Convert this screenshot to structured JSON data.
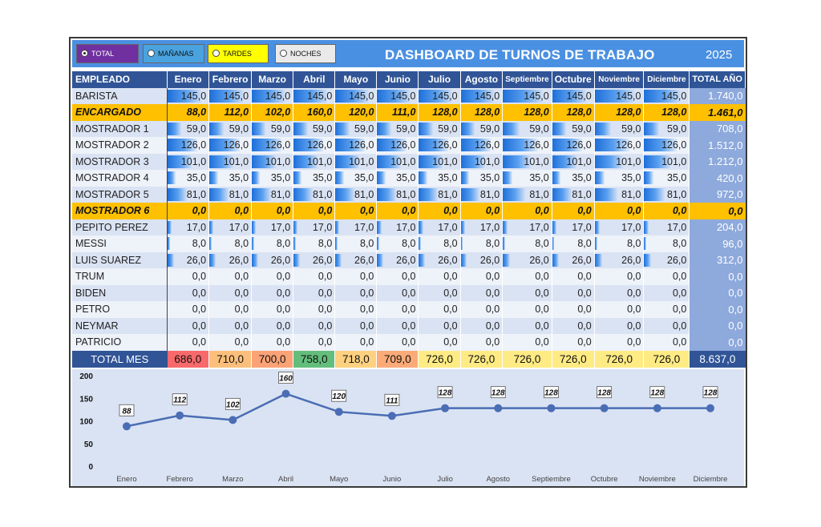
{
  "options": [
    {
      "label": "TOTAL HORAS",
      "selected": true
    },
    {
      "label": "MAÑANAS",
      "selected": false
    },
    {
      "label": "TARDES",
      "selected": false
    },
    {
      "label": "NOCHES",
      "selected": false
    }
  ],
  "title": "DASHBOARD DE TURNOS DE TRABAJO",
  "year": "2025",
  "table": {
    "header_first": "EMPLEADO",
    "months": [
      "Enero",
      "Febrero",
      "Marzo",
      "Abril",
      "Mayo",
      "Junio",
      "Julio",
      "Agosto",
      "Septiembre",
      "Octubre",
      "Noviembre",
      "Diciembre"
    ],
    "header_total": "TOTAL AÑO",
    "rows": [
      {
        "name": "BARISTA",
        "values": [
          "145,0",
          "145,0",
          "145,0",
          "145,0",
          "145,0",
          "145,0",
          "145,0",
          "145,0",
          "145,0",
          "145,0",
          "145,0",
          "145,0"
        ],
        "total": "1.740,0",
        "highlight": false,
        "bar": 0.82
      },
      {
        "name": "ENCARGADO",
        "values": [
          "88,0",
          "112,0",
          "102,0",
          "160,0",
          "120,0",
          "111,0",
          "128,0",
          "128,0",
          "128,0",
          "128,0",
          "128,0",
          "128,0"
        ],
        "total": "1.461,0",
        "highlight": true,
        "bar": 0
      },
      {
        "name": "MOSTRADOR 1",
        "values": [
          "59,0",
          "59,0",
          "59,0",
          "59,0",
          "59,0",
          "59,0",
          "59,0",
          "59,0",
          "59,0",
          "59,0",
          "59,0",
          "59,0"
        ],
        "total": "708,0",
        "highlight": false,
        "bar": 0.34
      },
      {
        "name": "MOSTRADOR 2",
        "values": [
          "126,0",
          "126,0",
          "126,0",
          "126,0",
          "126,0",
          "126,0",
          "126,0",
          "126,0",
          "126,0",
          "126,0",
          "126,0",
          "126,0"
        ],
        "total": "1.512,0",
        "highlight": false,
        "bar": 0.72
      },
      {
        "name": "MOSTRADOR 3",
        "values": [
          "101,0",
          "101,0",
          "101,0",
          "101,0",
          "101,0",
          "101,0",
          "101,0",
          "101,0",
          "101,0",
          "101,0",
          "101,0",
          "101,0"
        ],
        "total": "1.212,0",
        "highlight": false,
        "bar": 0.58
      },
      {
        "name": "MOSTRADOR 4",
        "values": [
          "35,0",
          "35,0",
          "35,0",
          "35,0",
          "35,0",
          "35,0",
          "35,0",
          "35,0",
          "35,0",
          "35,0",
          "35,0",
          "35,0"
        ],
        "total": "420,0",
        "highlight": false,
        "bar": 0.2
      },
      {
        "name": "MOSTRADOR 5",
        "values": [
          "81,0",
          "81,0",
          "81,0",
          "81,0",
          "81,0",
          "81,0",
          "81,0",
          "81,0",
          "81,0",
          "81,0",
          "81,0",
          "81,0"
        ],
        "total": "972,0",
        "highlight": false,
        "bar": 0.46
      },
      {
        "name": "MOSTRADOR 6",
        "values": [
          "0,0",
          "0,0",
          "0,0",
          "0,0",
          "0,0",
          "0,0",
          "0,0",
          "0,0",
          "0,0",
          "0,0",
          "0,0",
          "0,0"
        ],
        "total": "0,0",
        "highlight": true,
        "bar": 0
      },
      {
        "name": "PEPITO PEREZ",
        "values": [
          "17,0",
          "17,0",
          "17,0",
          "17,0",
          "17,0",
          "17,0",
          "17,0",
          "17,0",
          "17,0",
          "17,0",
          "17,0",
          "17,0"
        ],
        "total": "204,0",
        "highlight": false,
        "bar": 0.1
      },
      {
        "name": "MESSI",
        "values": [
          "8,0",
          "8,0",
          "8,0",
          "8,0",
          "8,0",
          "8,0",
          "8,0",
          "8,0",
          "8,0",
          "8,0",
          "8,0",
          "8,0"
        ],
        "total": "96,0",
        "highlight": false,
        "bar": 0.05
      },
      {
        "name": "LUIS SUAREZ",
        "values": [
          "26,0",
          "26,0",
          "26,0",
          "26,0",
          "26,0",
          "26,0",
          "26,0",
          "26,0",
          "26,0",
          "26,0",
          "26,0",
          "26,0"
        ],
        "total": "312,0",
        "highlight": false,
        "bar": 0.15
      },
      {
        "name": "TRUM",
        "values": [
          "0,0",
          "0,0",
          "0,0",
          "0,0",
          "0,0",
          "0,0",
          "0,0",
          "0,0",
          "0,0",
          "0,0",
          "0,0",
          "0,0"
        ],
        "total": "0,0",
        "highlight": false,
        "bar": 0
      },
      {
        "name": "BIDEN",
        "values": [
          "0,0",
          "0,0",
          "0,0",
          "0,0",
          "0,0",
          "0,0",
          "0,0",
          "0,0",
          "0,0",
          "0,0",
          "0,0",
          "0,0"
        ],
        "total": "0,0",
        "highlight": false,
        "bar": 0
      },
      {
        "name": "PETRO",
        "values": [
          "0,0",
          "0,0",
          "0,0",
          "0,0",
          "0,0",
          "0,0",
          "0,0",
          "0,0",
          "0,0",
          "0,0",
          "0,0",
          "0,0"
        ],
        "total": "0,0",
        "highlight": false,
        "bar": 0
      },
      {
        "name": "NEYMAR",
        "values": [
          "0,0",
          "0,0",
          "0,0",
          "0,0",
          "0,0",
          "0,0",
          "0,0",
          "0,0",
          "0,0",
          "0,0",
          "0,0",
          "0,0"
        ],
        "total": "0,0",
        "highlight": false,
        "bar": 0
      },
      {
        "name": "PATRICIO",
        "values": [
          "0,0",
          "0,0",
          "0,0",
          "0,0",
          "0,0",
          "0,0",
          "0,0",
          "0,0",
          "0,0",
          "0,0",
          "0,0",
          "0,0"
        ],
        "total": "0,0",
        "highlight": false,
        "bar": 0
      }
    ],
    "footer": {
      "label": "TOTAL MES",
      "values": [
        "686,0",
        "710,0",
        "700,0",
        "758,0",
        "718,0",
        "709,0",
        "726,0",
        "726,0",
        "726,0",
        "726,0",
        "726,0",
        "726,0"
      ],
      "colors": [
        "#f8696b",
        "#fcbf7b",
        "#fba276",
        "#63be7b",
        "#fdd17f",
        "#fcaa78",
        "#ffeb84",
        "#ffeb84",
        "#ffeb84",
        "#ffeb84",
        "#ffeb84",
        "#ffeb84"
      ],
      "total": "8.637,0"
    }
  },
  "chart_data": {
    "type": "line",
    "categories": [
      "Enero",
      "Febrero",
      "Marzo",
      "Abril",
      "Mayo",
      "Junio",
      "Julio",
      "Agosto",
      "Septiembre",
      "Octubre",
      "Noviembre",
      "Diciembre"
    ],
    "values": [
      88,
      112,
      102,
      160,
      120,
      111,
      128,
      128,
      128,
      128,
      128,
      128
    ],
    "ylim": [
      0,
      200
    ],
    "yticks": [
      0,
      50,
      100,
      150,
      200
    ],
    "color": "#4a6db5",
    "grid": false
  }
}
